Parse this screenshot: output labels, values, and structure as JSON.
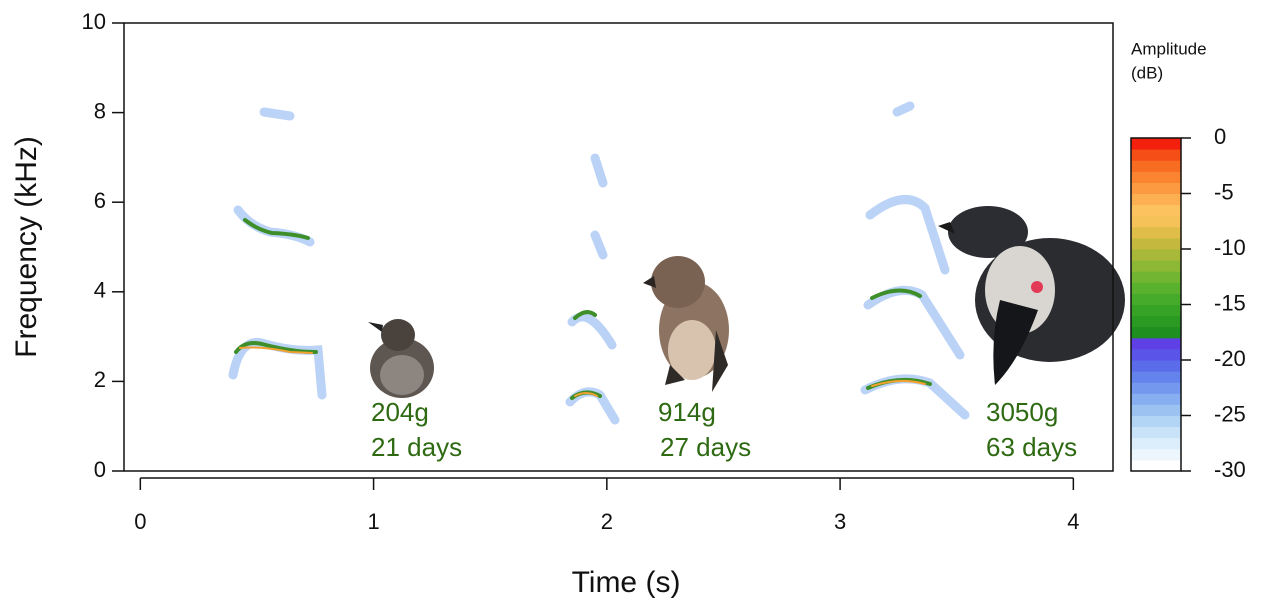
{
  "chart_data": {
    "type": "spectrogram",
    "xlabel": "Time (s)",
    "ylabel": "Frequency (kHz)",
    "xlim": [
      -0.07,
      4.17
    ],
    "xticks": [
      0,
      1,
      2,
      3,
      4
    ],
    "ylim": [
      0,
      10
    ],
    "yticks": [
      0,
      2,
      4,
      6,
      8,
      10
    ],
    "annotations": [
      {
        "lines": [
          "204g",
          "21 days"
        ]
      },
      {
        "lines": [
          "914g",
          "27 days"
        ]
      },
      {
        "lines": [
          "3050g",
          "63 days"
        ]
      }
    ],
    "annotation_color": "#2e6a12",
    "colorbar": {
      "title_lines": [
        "Amplitude",
        "(dB)"
      ],
      "lim": [
        -30,
        0
      ],
      "ticks": [
        0,
        -5,
        -10,
        -15,
        -20,
        -25,
        -30
      ],
      "colors": [
        "#ffffff",
        "#eef6fd",
        "#dceefb",
        "#c8e2f8",
        "#b2d4f5",
        "#9cc2f2",
        "#87aef0",
        "#7498ee",
        "#6483ec",
        "#5a6cea",
        "#5a55e8",
        "#5f3fe6",
        "#1f8f1f",
        "#2a9a22",
        "#36a326",
        "#46ab2a",
        "#5ab12e",
        "#72b532",
        "#8cb836",
        "#a8b93a",
        "#c4b83e",
        "#e0bc48",
        "#f5c25a",
        "#fcc260",
        "#fcb052",
        "#fb9a40",
        "#fa8430",
        "#f86c22",
        "#f54e16",
        "#f2200c"
      ]
    }
  }
}
